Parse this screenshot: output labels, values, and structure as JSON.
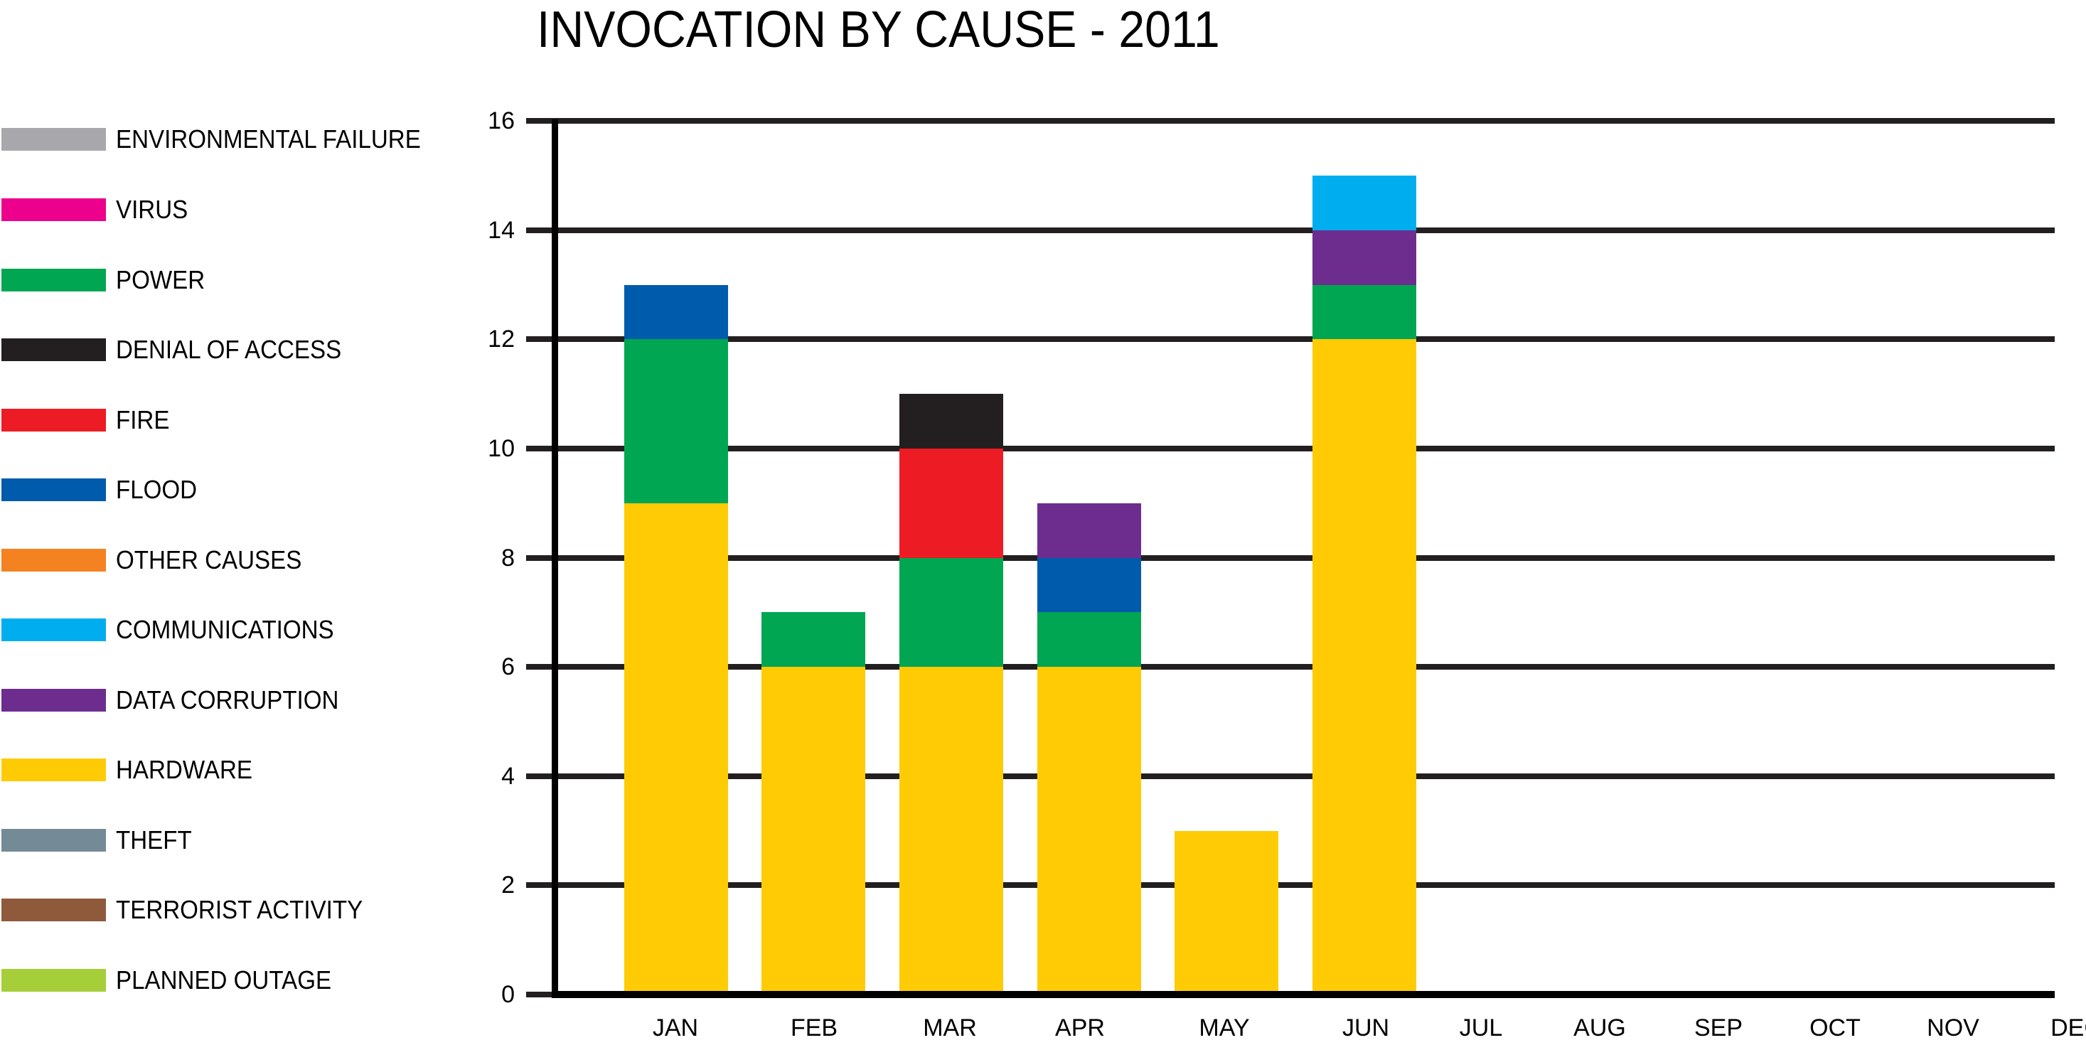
{
  "title": "INVOCATION BY CAUSE - 2011",
  "legend": [
    {
      "label": "ENVIRONMENTAL FAILURE",
      "color": "#a8a7ab"
    },
    {
      "label": "VIRUS",
      "color": "#ec008c"
    },
    {
      "label": "POWER",
      "color": "#00a651"
    },
    {
      "label": "DENIAL OF ACCESS",
      "color": "#231f20"
    },
    {
      "label": "FIRE",
      "color": "#ed1c24"
    },
    {
      "label": "FLOOD",
      "color": "#005bac"
    },
    {
      "label": "OTHER CAUSES",
      "color": "#f58220"
    },
    {
      "label": "COMMUNICATIONS",
      "color": "#00aeef"
    },
    {
      "label": "DATA CORRUPTION",
      "color": "#6d2d8f"
    },
    {
      "label": "HARDWARE",
      "color": "#ffcb05"
    },
    {
      "label": "THEFT",
      "color": "#748a96"
    },
    {
      "label": "TERRORIST ACTIVITY",
      "color": "#8f5a3c"
    },
    {
      "label": "PLANNED OUTAGE",
      "color": "#a6ce39"
    }
  ],
  "yaxis": {
    "ticks": [
      "0",
      "2",
      "4",
      "6",
      "8",
      "10",
      "12",
      "14",
      "16"
    ]
  },
  "xaxis": {
    "ticks": [
      "JAN",
      "FEB",
      "MAR",
      "APR",
      "MAY",
      "JUN",
      "JUL",
      "AUG",
      "SEP",
      "OCT",
      "NOV",
      "DEC"
    ]
  },
  "chart_data": {
    "type": "bar",
    "stacked": true,
    "title": "INVOCATION BY CAUSE - 2011",
    "xlabel": "",
    "ylabel": "",
    "ylim": [
      0,
      16
    ],
    "yticks": [
      0,
      2,
      4,
      6,
      8,
      10,
      12,
      14,
      16
    ],
    "grid": true,
    "legend_position": "left",
    "categories": [
      "JAN",
      "FEB",
      "MAR",
      "APR",
      "MAY",
      "JUN",
      "JUL",
      "AUG",
      "SEP",
      "OCT",
      "NOV",
      "DEC"
    ],
    "series": [
      {
        "name": "HARDWARE",
        "color": "#ffcb05",
        "values": [
          9,
          6,
          6,
          6,
          3,
          12,
          0,
          0,
          0,
          0,
          0,
          0
        ]
      },
      {
        "name": "POWER",
        "color": "#00a651",
        "values": [
          3,
          1,
          2,
          1,
          0,
          1,
          0,
          0,
          0,
          0,
          0,
          0
        ]
      },
      {
        "name": "FLOOD",
        "color": "#005bac",
        "values": [
          1,
          0,
          0,
          1,
          0,
          0,
          0,
          0,
          0,
          0,
          0,
          0
        ]
      },
      {
        "name": "FIRE",
        "color": "#ed1c24",
        "values": [
          0,
          0,
          2,
          0,
          0,
          0,
          0,
          0,
          0,
          0,
          0,
          0
        ]
      },
      {
        "name": "DENIAL OF ACCESS",
        "color": "#231f20",
        "values": [
          0,
          0,
          1,
          0,
          0,
          0,
          0,
          0,
          0,
          0,
          0,
          0
        ]
      },
      {
        "name": "DATA CORRUPTION",
        "color": "#6d2d8f",
        "values": [
          0,
          0,
          0,
          1,
          0,
          1,
          0,
          0,
          0,
          0,
          0,
          0
        ]
      },
      {
        "name": "COMMUNICATIONS",
        "color": "#00aeef",
        "values": [
          0,
          0,
          0,
          0,
          0,
          1,
          0,
          0,
          0,
          0,
          0,
          0
        ]
      },
      {
        "name": "ENVIRONMENTAL FAILURE",
        "color": "#a8a7ab",
        "values": [
          0,
          0,
          0,
          0,
          0,
          0,
          0,
          0,
          0,
          0,
          0,
          0
        ]
      },
      {
        "name": "VIRUS",
        "color": "#ec008c",
        "values": [
          0,
          0,
          0,
          0,
          0,
          0,
          0,
          0,
          0,
          0,
          0,
          0
        ]
      },
      {
        "name": "OTHER CAUSES",
        "color": "#f58220",
        "values": [
          0,
          0,
          0,
          0,
          0,
          0,
          0,
          0,
          0,
          0,
          0,
          0
        ]
      },
      {
        "name": "THEFT",
        "color": "#748a96",
        "values": [
          0,
          0,
          0,
          0,
          0,
          0,
          0,
          0,
          0,
          0,
          0,
          0
        ]
      },
      {
        "name": "TERRORIST ACTIVITY",
        "color": "#8f5a3c",
        "values": [
          0,
          0,
          0,
          0,
          0,
          0,
          0,
          0,
          0,
          0,
          0,
          0
        ]
      },
      {
        "name": "PLANNED OUTAGE",
        "color": "#a6ce39",
        "values": [
          0,
          0,
          0,
          0,
          0,
          0,
          0,
          0,
          0,
          0,
          0,
          0
        ]
      }
    ],
    "totals": [
      13,
      7,
      11,
      9,
      3,
      15,
      0,
      0,
      0,
      0,
      0,
      0
    ]
  }
}
